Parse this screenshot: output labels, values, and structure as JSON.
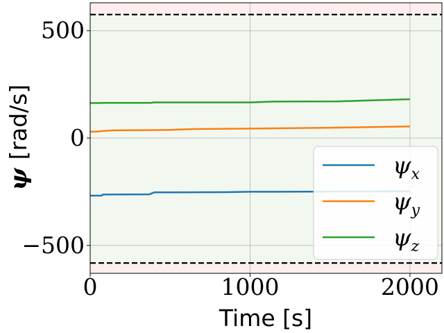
{
  "chart_data": {
    "type": "line",
    "xlabel": "Time [s]",
    "ylabel_symbol": "ψ",
    "ylabel_unit": "[rad/s]",
    "xlim": [
      0,
      2200
    ],
    "ylim": [
      -630,
      630
    ],
    "xticks": [
      {
        "value": 0,
        "label": "0"
      },
      {
        "value": 1000,
        "label": "1000"
      },
      {
        "value": 2000,
        "label": "2000"
      }
    ],
    "yticks": [
      {
        "value": -500,
        "label": "−500"
      },
      {
        "value": 0,
        "label": "0"
      },
      {
        "value": 500,
        "label": "500"
      }
    ],
    "grid": true,
    "limits": [
      575,
      -582
    ],
    "safe_region_color": "#f2f8f0",
    "unsafe_region_color": "#ffeeee",
    "legend_position": "lower-right",
    "series": [
      {
        "name": "ψ",
        "subscript": "x",
        "color": "#1f77b4",
        "x": [
          0,
          70,
          80,
          370,
          400,
          850,
          1000,
          1200,
          1500,
          2000
        ],
        "y": [
          -268,
          -268,
          -263,
          -262,
          -253,
          -252,
          -250,
          -250,
          -249,
          -248
        ]
      },
      {
        "name": "ψ",
        "subscript": "y",
        "color": "#ff7f0e",
        "x": [
          0,
          40,
          80,
          150,
          400,
          500,
          650,
          1000,
          1100,
          1500,
          2000
        ],
        "y": [
          30,
          30,
          33,
          36,
          37,
          38,
          42,
          44,
          45,
          48,
          54
        ]
      },
      {
        "name": "ψ",
        "subscript": "z",
        "color": "#2ca02c",
        "x": [
          0,
          60,
          80,
          380,
          400,
          1000,
          1150,
          1550,
          2000
        ],
        "y": [
          163,
          163,
          164,
          164,
          166,
          166,
          170,
          171,
          181
        ]
      }
    ]
  }
}
